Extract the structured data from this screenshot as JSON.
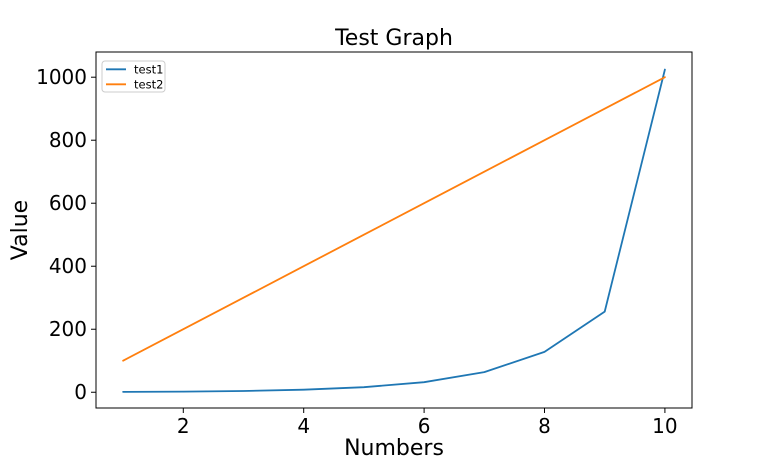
{
  "chart_data": {
    "type": "line",
    "title": "Test Graph",
    "xlabel": "Numbers",
    "ylabel": "Value",
    "x": [
      1,
      2,
      3,
      4,
      5,
      6,
      7,
      8,
      9,
      10
    ],
    "series": [
      {
        "name": "test1",
        "color": "#1f77b4",
        "values": [
          1,
          2,
          4,
          8,
          16,
          32,
          64,
          128,
          256,
          1024
        ]
      },
      {
        "name": "test2",
        "color": "#ff7f0e",
        "values": [
          100,
          200,
          300,
          400,
          500,
          600,
          700,
          800,
          900,
          1000
        ]
      }
    ],
    "xlim": [
      0.55,
      10.45
    ],
    "ylim": [
      -50,
      1080
    ],
    "xticks": [
      2,
      4,
      6,
      8,
      10
    ],
    "yticks": [
      0,
      200,
      400,
      600,
      800,
      1000
    ],
    "grid": false,
    "legend_position": "upper left",
    "colors": {
      "background": "#ffffff",
      "spine": "#000000",
      "text": "#000000",
      "legend_border": "#cccccc",
      "legend_fill": "#ffffff"
    }
  }
}
